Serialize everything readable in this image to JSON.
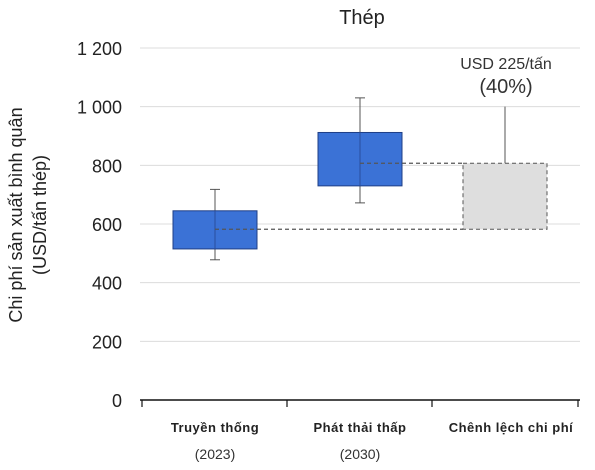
{
  "chart_data": {
    "type": "box",
    "title": "Thép",
    "ylabel_line1": "Chi phí sản xuất bình quân",
    "ylabel_line2": "(USD/tấn thép)",
    "ylim": [
      0,
      1200
    ],
    "yticks": [
      0,
      200,
      400,
      600,
      800,
      1000,
      1200
    ],
    "ytick_labels": [
      "0",
      "200",
      "400",
      "600",
      "800",
      "1 000",
      "1 200"
    ],
    "grid": true,
    "categories": [
      {
        "label": "Truyền thống",
        "sublabel": "(2023)"
      },
      {
        "label": "Phát thải thấp",
        "sublabel": "(2030)"
      },
      {
        "label": "Chênh lệch chi phí",
        "sublabel": ""
      }
    ],
    "boxes": [
      {
        "category": "Truyền thống",
        "low": 478,
        "q1": 515,
        "median": 582,
        "q3": 645,
        "high": 718,
        "color": "#3B72D6"
      },
      {
        "category": "Phát thải thấp",
        "low": 672,
        "q1": 730,
        "median": 807,
        "q3": 912,
        "high": 1030,
        "color": "#3B72D6"
      }
    ],
    "gap": {
      "category": "Chênh lệch chi phí",
      "from": 582,
      "to": 807,
      "whisker_high": 1000,
      "color": "#DEDEDE"
    },
    "annotation": {
      "line1": "USD 225/tấn",
      "line2": "(40%)"
    },
    "colors": {
      "box": "#3B72D6",
      "box_border": "#1F3F86",
      "gap": "#DEDEDE",
      "grid": "#DCDCDC"
    }
  }
}
